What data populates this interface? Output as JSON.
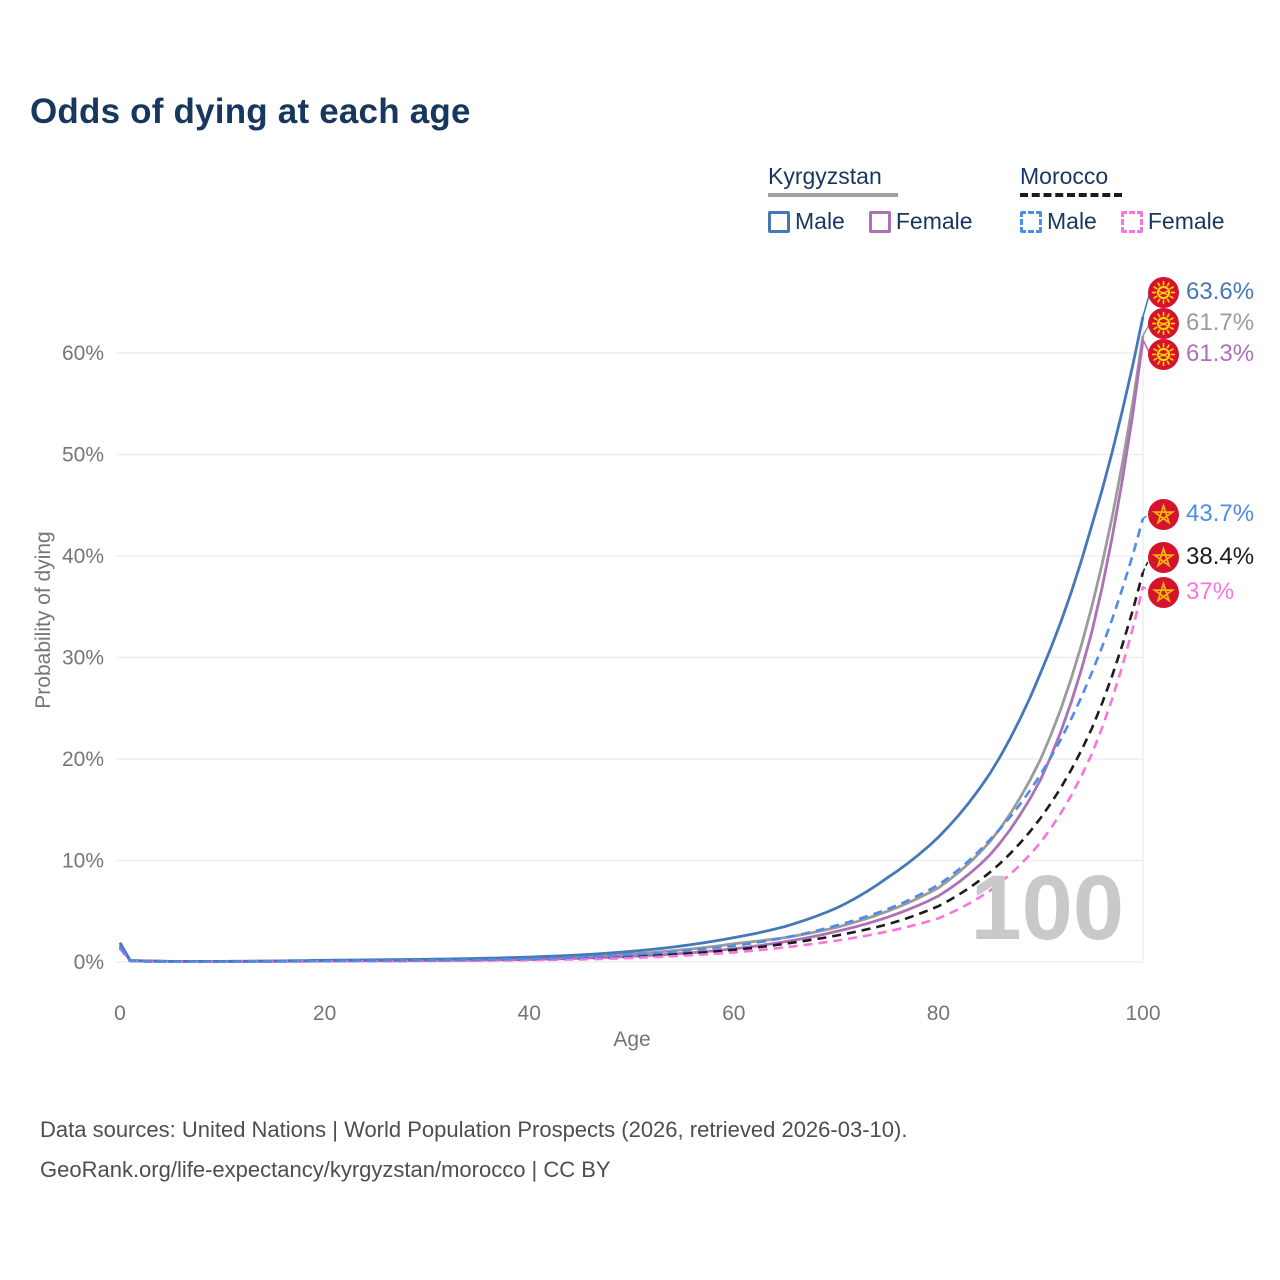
{
  "title": "Odds of dying at each age",
  "legend": {
    "groups": [
      {
        "country": "Kyrgyzstan",
        "underline_style": "solid",
        "underline_color": "#a0a0a0",
        "items": [
          {
            "label": "Male",
            "color": "#4678b8",
            "style": "solid"
          },
          {
            "label": "Female",
            "color": "#ad71b5",
            "style": "solid"
          }
        ]
      },
      {
        "country": "Morocco",
        "underline_style": "dashed",
        "underline_color": "#1c1c1c",
        "items": [
          {
            "label": "Male",
            "color": "#4f8be8",
            "style": "dashed"
          },
          {
            "label": "Female",
            "color": "#fb74dd",
            "style": "dashed"
          }
        ]
      }
    ]
  },
  "chart_data": {
    "type": "line",
    "title": "Odds of dying at each age",
    "xlabel": "Age",
    "ylabel": "Probability of dying",
    "x_ticks": [
      0,
      20,
      40,
      60,
      80,
      100
    ],
    "y_ticks": [
      "0%",
      "10%",
      "20%",
      "30%",
      "40%",
      "50%",
      "60%"
    ],
    "xlim": [
      0,
      100
    ],
    "ylim_percent": [
      0,
      66
    ],
    "grid": "horizontal",
    "legend_position": "top-right",
    "watermark": "100",
    "ages": [
      0,
      1,
      5,
      10,
      15,
      20,
      25,
      30,
      35,
      40,
      45,
      50,
      55,
      60,
      65,
      70,
      75,
      80,
      85,
      90,
      95,
      100
    ],
    "series": [
      {
        "name": "Kyrgyzstan Male",
        "country": "Kyrgyzstan",
        "sex": "Male",
        "style": "solid",
        "color": "#4678b8",
        "end_label": "63.6%",
        "end_value_percent": 63.6,
        "values_percent": [
          1.9,
          0.15,
          0.06,
          0.06,
          0.1,
          0.17,
          0.22,
          0.27,
          0.35,
          0.48,
          0.7,
          1.05,
          1.6,
          2.4,
          3.5,
          5.3,
          8.3,
          12.3,
          18.5,
          28.5,
          43.0,
          63.6
        ]
      },
      {
        "name": "Kyrgyzstan (both sexes)",
        "country": "Kyrgyzstan",
        "sex": "Both",
        "style": "solid",
        "color": "#9b9b9b",
        "end_label": "61.7%",
        "end_value_percent": 61.7,
        "values_percent": [
          1.75,
          0.14,
          0.055,
          0.055,
          0.085,
          0.13,
          0.16,
          0.2,
          0.26,
          0.36,
          0.53,
          0.8,
          1.2,
          1.8,
          2.4,
          3.4,
          5.0,
          7.3,
          11.8,
          20.0,
          35.0,
          61.7
        ]
      },
      {
        "name": "Kyrgyzstan Female",
        "country": "Kyrgyzstan",
        "sex": "Female",
        "style": "solid",
        "color": "#ad71b5",
        "end_label": "61.3%",
        "end_value_percent": 61.3,
        "values_percent": [
          1.6,
          0.12,
          0.05,
          0.05,
          0.07,
          0.09,
          0.11,
          0.14,
          0.18,
          0.25,
          0.37,
          0.56,
          0.85,
          1.3,
          2.0,
          3.0,
          4.4,
          6.5,
          10.5,
          18.0,
          32.5,
          61.3
        ]
      },
      {
        "name": "Morocco Male",
        "country": "Morocco",
        "sex": "Male",
        "style": "dashed",
        "color": "#4f8be8",
        "end_label": "43.7%",
        "end_value_percent": 43.7,
        "values_percent": [
          1.5,
          0.1,
          0.04,
          0.04,
          0.07,
          0.11,
          0.14,
          0.17,
          0.22,
          0.31,
          0.46,
          0.72,
          1.08,
          1.6,
          2.4,
          3.6,
          5.2,
          7.6,
          12.0,
          18.5,
          28.5,
          43.7
        ]
      },
      {
        "name": "Morocco (both sexes)",
        "country": "Morocco",
        "sex": "Both",
        "style": "dashed",
        "color": "#1c1c1c",
        "end_label": "38.4%",
        "end_value_percent": 38.4,
        "values_percent": [
          1.4,
          0.09,
          0.035,
          0.035,
          0.06,
          0.09,
          0.11,
          0.13,
          0.17,
          0.23,
          0.34,
          0.52,
          0.8,
          1.2,
          1.8,
          2.6,
          3.7,
          5.5,
          8.8,
          14.2,
          23.0,
          38.4
        ]
      },
      {
        "name": "Morocco Female",
        "country": "Morocco",
        "sex": "Female",
        "style": "dashed",
        "color": "#fb74dd",
        "end_label": "37%",
        "end_value_percent": 37.0,
        "values_percent": [
          1.3,
          0.08,
          0.03,
          0.03,
          0.05,
          0.07,
          0.085,
          0.1,
          0.13,
          0.18,
          0.26,
          0.4,
          0.62,
          0.95,
          1.45,
          2.1,
          3.0,
          4.3,
          7.0,
          11.8,
          20.5,
          37.0
        ]
      }
    ]
  },
  "footer": {
    "line1": "Data sources: United Nations | World Population Prospects (2026, retrieved 2026-03-10).",
    "line2": "GeoRank.org/life-expectancy/kyrgyzstan/morocco | CC BY"
  },
  "colors": {
    "navy": "#17375e",
    "axis_gray": "#767676",
    "grid_gray": "#ebebeb",
    "footer_gray": "#4e4e4e",
    "watermark_gray": "#c9c9c9",
    "flag_red": "#d6132d",
    "flag_yellow": "#ffd400",
    "flag_gold": "#f2b705"
  }
}
